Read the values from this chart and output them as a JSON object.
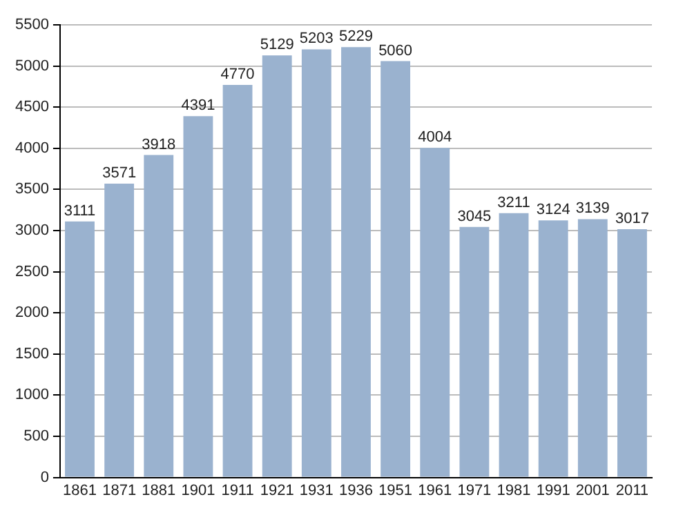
{
  "chart_data": {
    "type": "bar",
    "categories": [
      "1861",
      "1871",
      "1881",
      "1901",
      "1911",
      "1921",
      "1931",
      "1936",
      "1951",
      "1961",
      "1971",
      "1981",
      "1991",
      "2001",
      "2011"
    ],
    "values": [
      3111,
      3571,
      3918,
      4391,
      4770,
      5129,
      5203,
      5229,
      5060,
      4004,
      3045,
      3211,
      3124,
      3139,
      3017
    ],
    "color": "#9ab2cf",
    "ylim": [
      0,
      5500
    ],
    "yticks": [
      0,
      500,
      1000,
      1500,
      2000,
      2500,
      3000,
      3500,
      4000,
      4500,
      5000,
      5500
    ],
    "grid": "y",
    "data_labels": true
  }
}
